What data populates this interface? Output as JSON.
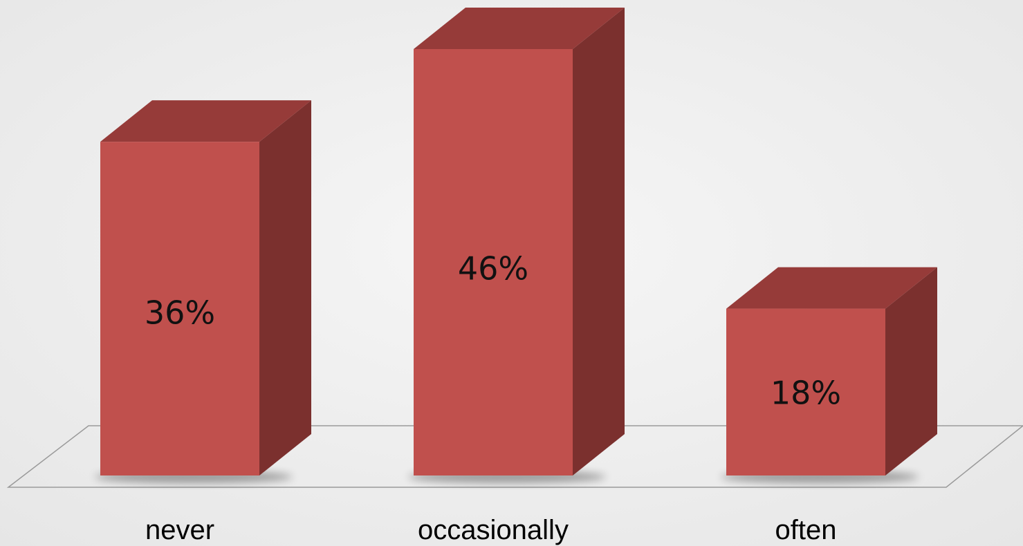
{
  "chart_data": {
    "type": "bar",
    "style": "3d-column",
    "categories": [
      "never",
      "occasionally",
      "often"
    ],
    "series": [
      {
        "values": [
          36,
          46,
          18
        ],
        "labels": [
          "36%",
          "46%",
          "18%"
        ]
      }
    ],
    "ylim": [
      0,
      50
    ],
    "grid": false,
    "legend": "none"
  },
  "colors": {
    "background": "#efefef",
    "bar_front": "#c0504d",
    "bar_top": "#963b39",
    "bar_side": "#7b302e",
    "floor_line": "#9a9a9a",
    "data_label": "#111111",
    "category_label": "#000000"
  }
}
